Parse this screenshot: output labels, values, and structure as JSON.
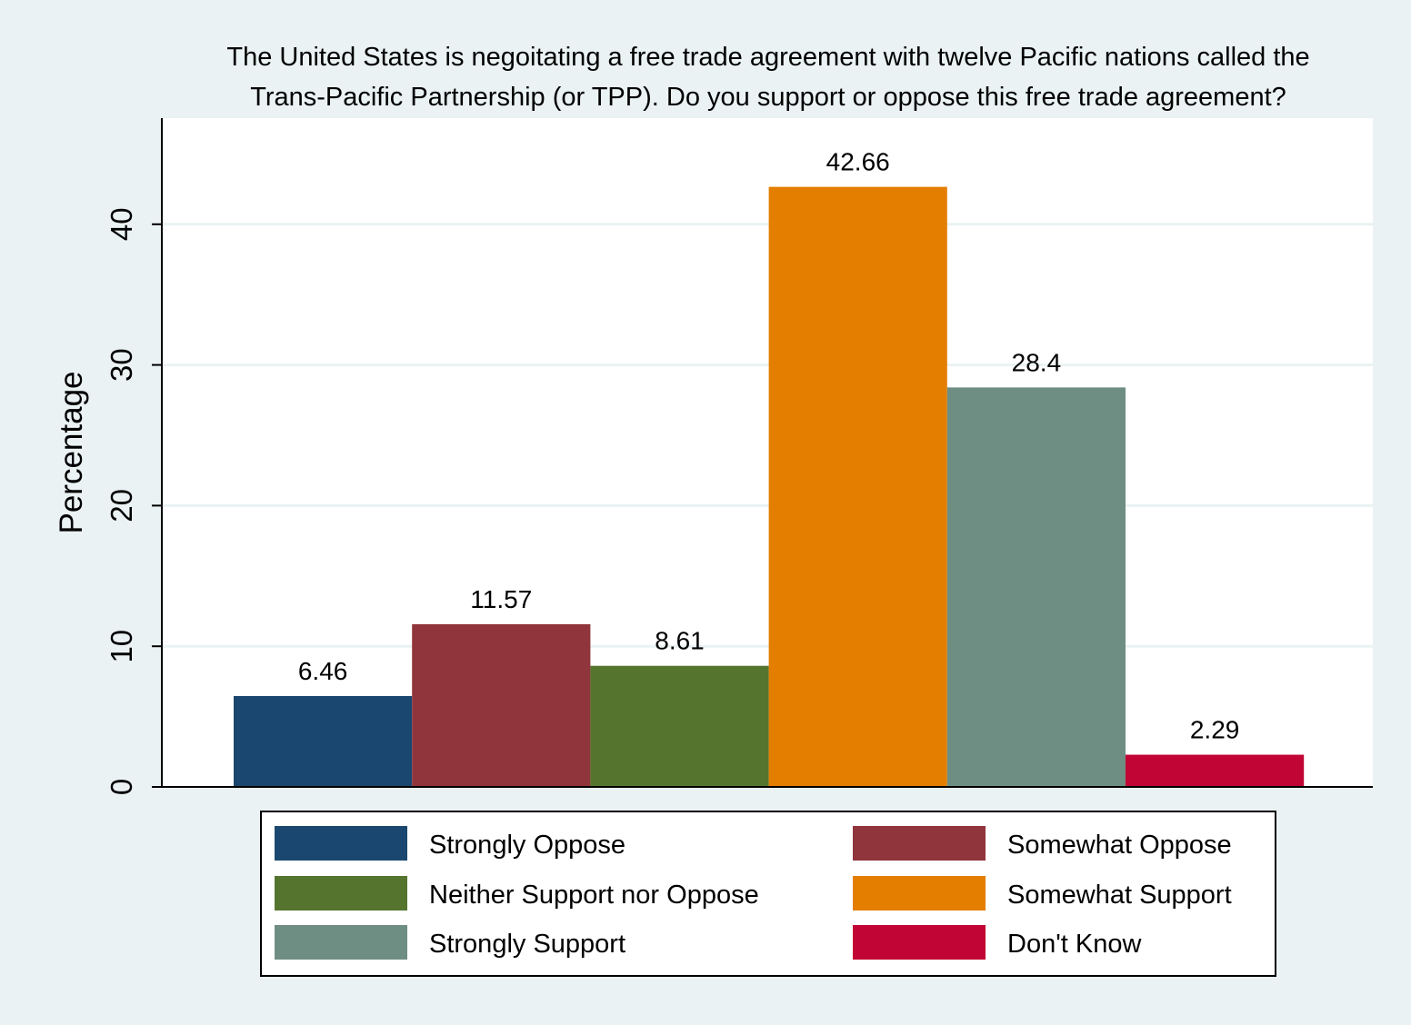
{
  "chart_data": {
    "type": "bar",
    "title_lines": [
      "The United States is negoitating a free trade agreement with twelve Pacific nations called the",
      "Trans-Pacific Partnership (or TPP). Do you support or oppose this free trade agreement?"
    ],
    "ylabel": "Percentage",
    "xlabel": "",
    "ylim": [
      0,
      47.5
    ],
    "yticks": [
      0,
      10,
      20,
      30,
      40
    ],
    "grid": true,
    "legend_position": "bottom",
    "series": [
      {
        "name": "Strongly Oppose",
        "value": 6.46,
        "label": "6.46",
        "color": "#1a476f"
      },
      {
        "name": "Somewhat Oppose",
        "value": 11.57,
        "label": "11.57",
        "color": "#90353b"
      },
      {
        "name": "Neither Support nor Oppose",
        "value": 8.61,
        "label": "8.61",
        "color": "#55752f"
      },
      {
        "name": "Somewhat Support",
        "value": 42.66,
        "label": "42.66",
        "color": "#e37e00"
      },
      {
        "name": "Strongly Support",
        "value": 28.4,
        "label": "28.4",
        "color": "#6e8e84"
      },
      {
        "name": "Don't Know",
        "value": 2.29,
        "label": "2.29",
        "color": "#c10534"
      }
    ]
  }
}
